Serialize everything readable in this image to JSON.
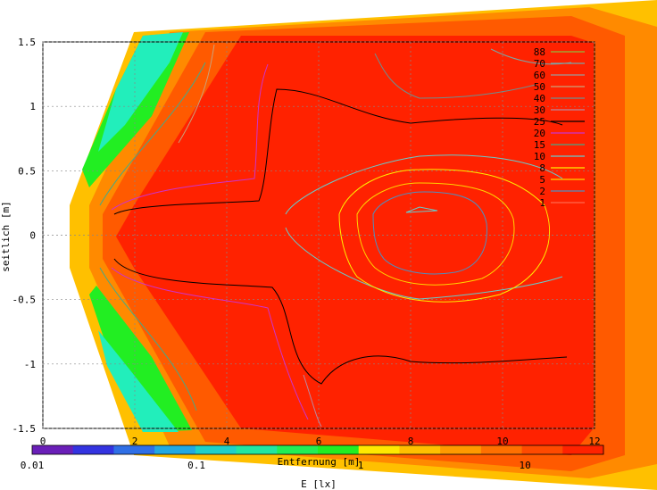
{
  "chart_data": {
    "type": "heatmap",
    "title": "",
    "xlabel": "Entfernung [m]",
    "ylabel": "seitlich [m]",
    "xlim": [
      0,
      12
    ],
    "ylim": [
      -1.5,
      1.5
    ],
    "x_ticks": [
      "0",
      "2",
      "4",
      "6",
      "8",
      "10",
      "12"
    ],
    "y_ticks": [
      "1.5",
      "1",
      "0.5",
      "0",
      "-0.5",
      "-1",
      "-1.5"
    ],
    "grid": true,
    "log_scale_colorbar": true,
    "colorbar": {
      "label": "E [lx]",
      "ticks": [
        "0.01",
        "0.1",
        "1",
        "10"
      ],
      "range": [
        0.01,
        30
      ]
    },
    "contour_levels": [
      {
        "level": "88",
        "color": "#8fbc3f"
      },
      {
        "level": "70",
        "color": "#7aa6a6"
      },
      {
        "level": "60",
        "color": "#9b9b9b"
      },
      {
        "level": "50",
        "color": "#c9a27a"
      },
      {
        "level": "40",
        "color": "#6d8f8f"
      },
      {
        "level": "30",
        "color": "#b98aa0"
      },
      {
        "level": "25",
        "color": "#000000"
      },
      {
        "level": "20",
        "color": "#cc33cc"
      },
      {
        "level": "15",
        "color": "#44aa88"
      },
      {
        "level": "10",
        "color": "#66cccc"
      },
      {
        "level": "8",
        "color": "#ffee00"
      },
      {
        "level": "5",
        "color": "#ffd400"
      },
      {
        "level": "2",
        "color": "#4f8fbf"
      },
      {
        "level": "1",
        "color": "#ff6a4d"
      }
    ]
  }
}
